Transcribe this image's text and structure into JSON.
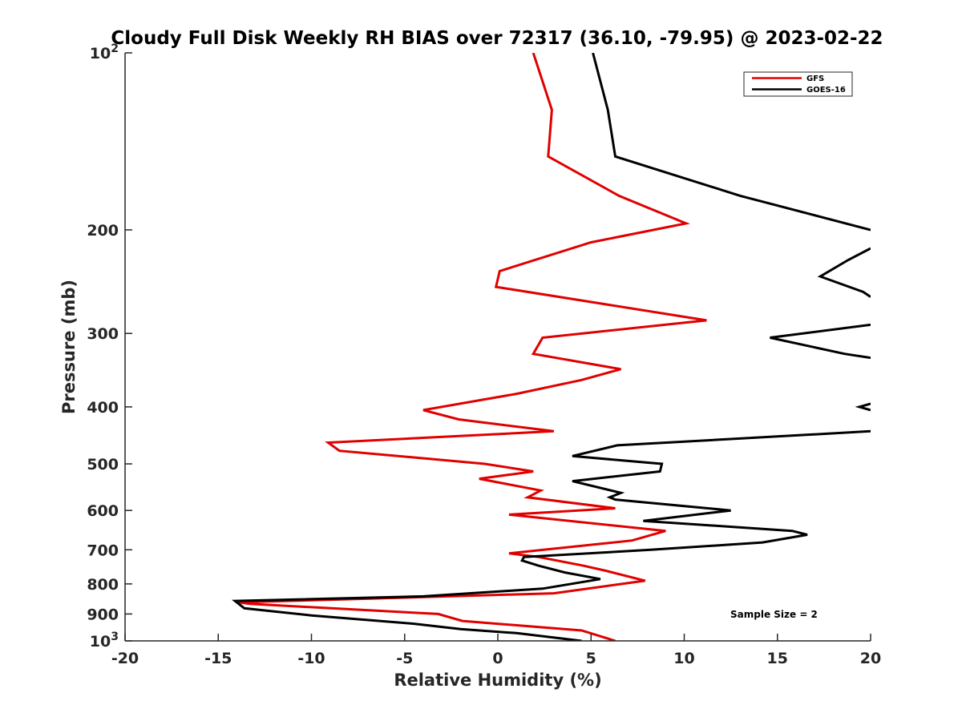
{
  "chart_data": {
    "type": "line",
    "title": "Cloudy Full Disk Weekly RH BIAS over 72317 (36.10, -79.95) @ 2023-02-22",
    "xlabel": "Relative Humidity (%)",
    "ylabel": "Pressure (mb)",
    "xlim": [
      -20,
      20
    ],
    "ylim": [
      100,
      1000
    ],
    "yscale": "log",
    "y_reversed": true,
    "x_ticks": [
      "-20",
      "-15",
      "-10",
      "-5",
      "0",
      "5",
      "10",
      "15",
      "20"
    ],
    "y_ticks": [
      {
        "value": 100,
        "label": "10",
        "sup": "2"
      },
      {
        "value": 200,
        "label": "200",
        "sup": ""
      },
      {
        "value": 300,
        "label": "300",
        "sup": ""
      },
      {
        "value": 400,
        "label": "400",
        "sup": ""
      },
      {
        "value": 500,
        "label": "500",
        "sup": ""
      },
      {
        "value": 600,
        "label": "600",
        "sup": ""
      },
      {
        "value": 700,
        "label": "700",
        "sup": ""
      },
      {
        "value": 800,
        "label": "800",
        "sup": ""
      },
      {
        "value": 900,
        "label": "900",
        "sup": ""
      },
      {
        "value": 1000,
        "label": "10",
        "sup": "3"
      }
    ],
    "grid": false,
    "legend_position": "top-right",
    "annotation": "Sample Size = 2",
    "series": [
      {
        "name": "GFS",
        "color": "#e00000",
        "points": [
          [
            1.9,
            100
          ],
          [
            2.9,
            125
          ],
          [
            2.7,
            150
          ],
          [
            6.5,
            175
          ],
          [
            10.1,
            195
          ],
          [
            5,
            210
          ],
          [
            0.1,
            235
          ],
          [
            -0.1,
            250
          ],
          [
            11.2,
            285
          ],
          [
            2.4,
            305
          ],
          [
            1.9,
            325
          ],
          [
            6.6,
            345
          ],
          [
            4.5,
            360
          ],
          [
            1,
            380
          ],
          [
            -4,
            405
          ],
          [
            -2.1,
            420
          ],
          [
            3,
            440
          ],
          [
            -9.1,
            460
          ],
          [
            -8.5,
            475
          ],
          [
            -0.7,
            500
          ],
          [
            1.9,
            515
          ],
          [
            -1,
            530
          ],
          [
            2.3,
            555
          ],
          [
            1.6,
            570
          ],
          [
            6.3,
            595
          ],
          [
            0.6,
            610
          ],
          [
            9,
            650
          ],
          [
            7.2,
            675
          ],
          [
            0.6,
            710
          ],
          [
            2.2,
            720
          ],
          [
            4.6,
            745
          ],
          [
            5.8,
            760
          ],
          [
            7.9,
            790
          ],
          [
            3,
            830
          ],
          [
            -13.9,
            860
          ],
          [
            -13.3,
            865
          ],
          [
            -3.2,
            900
          ],
          [
            -1.9,
            925
          ],
          [
            4.5,
            960
          ],
          [
            6.3,
            1000
          ]
        ]
      },
      {
        "name": "GOES-16",
        "color": "#000000",
        "points": [
          [
            5.1,
            100
          ],
          [
            5.9,
            125
          ],
          [
            6.3,
            150
          ],
          [
            13,
            175
          ],
          [
            20,
            200
          ],
          [
            null,
            210
          ],
          [
            20,
            215
          ],
          [
            18.8,
            225
          ],
          [
            17.3,
            240
          ],
          [
            19.6,
            255
          ],
          [
            20,
            260
          ],
          [
            null,
            275
          ],
          [
            20,
            290
          ],
          [
            14.6,
            305
          ],
          [
            18.6,
            325
          ],
          [
            20,
            330
          ],
          [
            null,
            390
          ],
          [
            20,
            395
          ],
          [
            19.4,
            400
          ],
          [
            20,
            405
          ],
          [
            null,
            425
          ],
          [
            20,
            440
          ],
          [
            6.4,
            465
          ],
          [
            4,
            485
          ],
          [
            8.8,
            500
          ],
          [
            8.7,
            515
          ],
          [
            4,
            535
          ],
          [
            6.6,
            560
          ],
          [
            6,
            570
          ],
          [
            6.3,
            575
          ],
          [
            12.5,
            600
          ],
          [
            7.8,
            625
          ],
          [
            15.8,
            650
          ],
          [
            16.6,
            660
          ],
          [
            14.2,
            680
          ],
          [
            8.2,
            700
          ],
          [
            1.4,
            720
          ],
          [
            1.3,
            730
          ],
          [
            2.2,
            745
          ],
          [
            3.6,
            765
          ],
          [
            5.5,
            785
          ],
          [
            2.4,
            815
          ],
          [
            -4,
            840
          ],
          [
            -14.1,
            855
          ],
          [
            -13.6,
            880
          ],
          [
            -10,
            905
          ],
          [
            -4.5,
            935
          ],
          [
            -2,
            955
          ],
          [
            1,
            970
          ],
          [
            4.5,
            1000
          ]
        ]
      }
    ]
  }
}
